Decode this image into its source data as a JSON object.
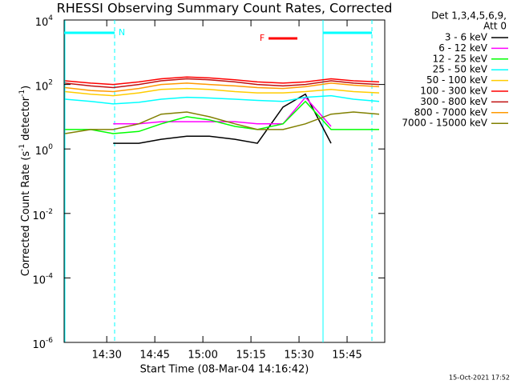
{
  "chart_data": {
    "type": "line",
    "title": "RHESSI Observing Summary Count Rates, Corrected",
    "xlabel": "Start Time (08-Mar-04 14:16:42)",
    "ylabel": [
      "Corrected Count Rate (s",
      "-1",
      " detector",
      "-1",
      ")"
    ],
    "legend_header": [
      "Det 1,3,4,5,6,9,",
      "Att 0"
    ],
    "annotations": {
      "night": "N",
      "flare": "F"
    },
    "footer": "15-Oct-2021 17:52",
    "yscale": "log",
    "ylim": [
      1e-06,
      10000
    ],
    "yticks": [
      {
        "value": 10000,
        "label": "10",
        "exponent": "4"
      },
      {
        "value": 100,
        "label": "10",
        "exponent": "2"
      },
      {
        "value": 1,
        "label": "10",
        "exponent": "0"
      },
      {
        "value": 0.01,
        "label": "10",
        "exponent": "-2"
      },
      {
        "value": 0.0001,
        "label": "10",
        "exponent": "-4"
      },
      {
        "value": 1e-06,
        "label": "10",
        "exponent": "-6"
      }
    ],
    "xlim": [
      "14:16:42",
      "15:56:45"
    ],
    "xticks": [
      "14:30",
      "14:45",
      "15:00",
      "15:15",
      "15:30",
      "15:45"
    ],
    "x": [
      "14:17",
      "14:25",
      "14:32",
      "14:40",
      "14:47",
      "14:55",
      "15:02",
      "15:10",
      "15:17",
      "15:25",
      "15:32",
      "15:40",
      "15:47",
      "15:55"
    ],
    "series": [
      {
        "name": "3 - 6 keV",
        "color": "#000000",
        "values": [
          null,
          null,
          1.5,
          1.5,
          2,
          2.5,
          2.5,
          2,
          1.5,
          20,
          50,
          1.5,
          null,
          null
        ]
      },
      {
        "name": "6 - 12 keV",
        "color": "#ff00ff",
        "values": [
          null,
          null,
          6,
          6,
          7,
          7,
          7,
          7,
          6,
          6,
          40,
          5,
          null,
          null
        ]
      },
      {
        "name": "12 - 25 keV",
        "color": "#00ff00",
        "values": [
          4,
          4,
          3,
          3.5,
          6,
          10,
          8,
          5,
          4,
          6,
          30,
          4,
          4,
          4
        ]
      },
      {
        "name": "25 - 50 keV",
        "color": "#00ffff",
        "values": [
          35,
          30,
          25,
          28,
          35,
          40,
          38,
          35,
          32,
          30,
          40,
          45,
          35,
          30
        ]
      },
      {
        "name": "50 - 100 keV",
        "color": "#ffcc00",
        "values": [
          60,
          50,
          45,
          55,
          70,
          75,
          70,
          60,
          55,
          55,
          60,
          70,
          60,
          55
        ]
      },
      {
        "name": "100 - 300 keV",
        "color": "#ff0000",
        "values": [
          130,
          110,
          100,
          120,
          150,
          170,
          160,
          140,
          120,
          110,
          120,
          150,
          130,
          120
        ]
      },
      {
        "name": "300 - 800 keV",
        "color": "#c01010",
        "values": [
          110,
          90,
          80,
          100,
          130,
          150,
          140,
          120,
          100,
          90,
          100,
          130,
          110,
          100
        ]
      },
      {
        "name": "800 - 7000 keV",
        "color": "#ff9900",
        "values": [
          80,
          65,
          60,
          75,
          100,
          110,
          100,
          90,
          80,
          75,
          85,
          110,
          95,
          85
        ]
      },
      {
        "name": "7000 - 15000 keV",
        "color": "#808000",
        "values": [
          3,
          4,
          4,
          6,
          12,
          14,
          10,
          6,
          4,
          4,
          6,
          12,
          14,
          12
        ]
      }
    ]
  }
}
